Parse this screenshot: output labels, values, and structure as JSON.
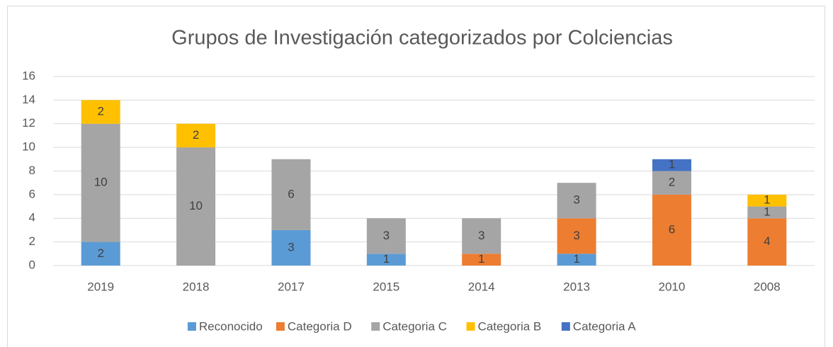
{
  "chart_data": {
    "type": "stacked-bar",
    "title": "Grupos de Investigación categorizados por Colciencias",
    "categories": [
      "2019",
      "2018",
      "2017",
      "2015",
      "2014",
      "2013",
      "2010",
      "2008"
    ],
    "series": [
      {
        "name": "Reconocido",
        "color": "#5b9bd5",
        "values": [
          2,
          null,
          3,
          1,
          null,
          1,
          null,
          null
        ]
      },
      {
        "name": "Categoria D",
        "color": "#ed7d31",
        "values": [
          null,
          null,
          null,
          null,
          1,
          3,
          6,
          4
        ]
      },
      {
        "name": "Categoria C",
        "color": "#a5a5a5",
        "values": [
          10,
          10,
          6,
          3,
          3,
          3,
          2,
          1
        ]
      },
      {
        "name": "Categoria B",
        "color": "#ffc000",
        "values": [
          2,
          2,
          null,
          null,
          null,
          null,
          null,
          1
        ]
      },
      {
        "name": "Categoria A",
        "color": "#4472c4",
        "values": [
          null,
          null,
          null,
          null,
          null,
          null,
          1,
          null
        ]
      }
    ],
    "ylim": [
      0,
      16
    ],
    "yticks": [
      0,
      2,
      4,
      6,
      8,
      10,
      12,
      14,
      16
    ],
    "grid": true,
    "legend": "bottom"
  }
}
